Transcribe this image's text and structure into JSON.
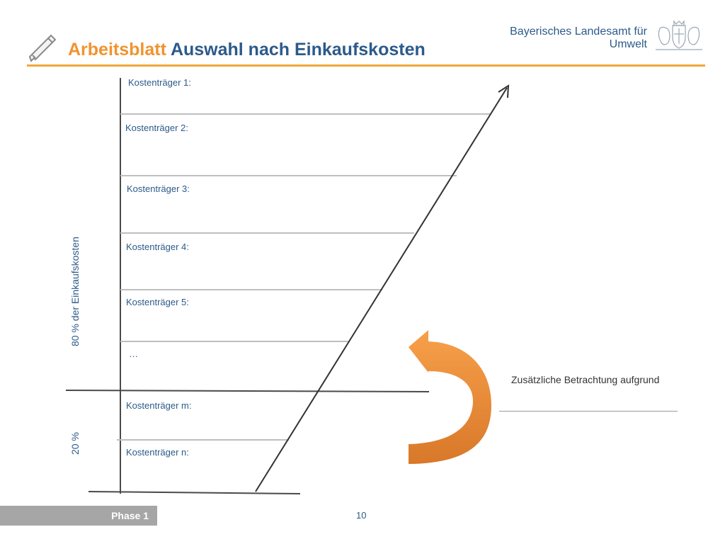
{
  "header": {
    "title_prefix": "Arbeitsblatt",
    "title_main": "Auswahl nach Einkaufskosten",
    "org_line1": "Bayerisches Landesamt für",
    "org_line2": "Umwelt",
    "icons": [
      "pencil-icon",
      "crest-icon"
    ]
  },
  "diagram": {
    "kostentraeger": [
      "Kostenträger 1:",
      "Kostenträger 2:",
      "Kostenträger 3:",
      "Kostenträger 4:",
      "Kostenträger 5:",
      "…",
      "Kostenträger m:",
      "Kostenträger n:"
    ],
    "label_80": "80 % der Einkaufskosten",
    "label_20": "20 %",
    "note": "Zusätzliche Betrachtung aufgrund",
    "colors": {
      "arrow_orange": "#f0942f",
      "line": "#333333",
      "rule": "#bfbfbf"
    }
  },
  "footer": {
    "phase": "Phase 1",
    "page": "10"
  }
}
